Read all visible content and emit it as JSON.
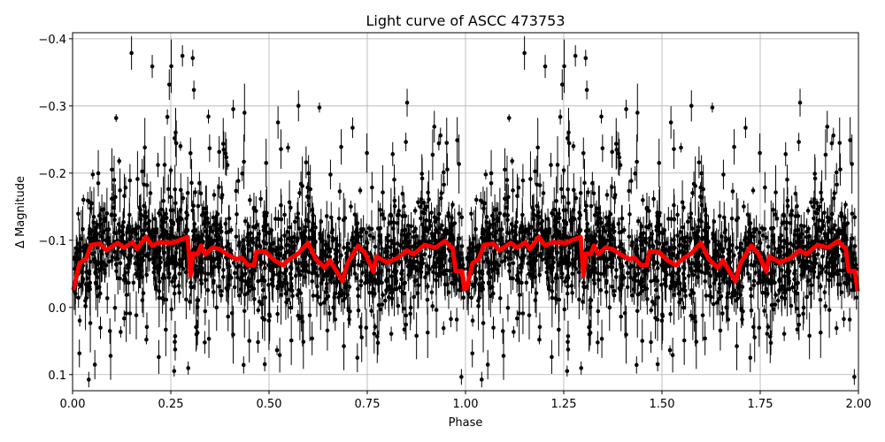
{
  "chart_data": {
    "type": "scatter",
    "title": "Light curve of ASCC 473753",
    "xlabel": "Phase",
    "ylabel": "Δ Magnitude",
    "xlim": [
      0,
      2
    ],
    "ylim": [
      0.124,
      -0.409
    ],
    "y_inverted": true,
    "grid": true,
    "xticks": [
      0,
      0.25,
      0.5,
      0.75,
      1.0,
      1.25,
      1.5,
      1.75,
      2.0
    ],
    "xtick_labels": [
      "0.00",
      "0.25",
      "0.50",
      "0.75",
      "1.00",
      "1.25",
      "1.50",
      "1.75",
      "2.00"
    ],
    "yticks": [
      -0.4,
      -0.3,
      -0.2,
      -0.1,
      0.0,
      0.1
    ],
    "ytick_labels": [
      "−0.4",
      "−0.3",
      "−0.2",
      "−0.1",
      "0.0",
      "0.1"
    ],
    "scatter_color": "#000000",
    "binned_curve": {
      "color": "#ff0000",
      "period_repeat": 1,
      "phase": [
        0.002,
        0.018,
        0.034,
        0.047,
        0.07,
        0.086,
        0.115,
        0.131,
        0.153,
        0.164,
        0.187,
        0.203,
        0.221,
        0.255,
        0.293,
        0.3,
        0.306,
        0.318,
        0.327,
        0.338,
        0.356,
        0.374,
        0.394,
        0.417,
        0.43,
        0.446,
        0.462,
        0.468,
        0.491,
        0.514,
        0.536,
        0.552,
        0.574,
        0.599,
        0.619,
        0.642,
        0.655,
        0.687,
        0.7,
        0.727,
        0.745,
        0.766,
        0.773,
        0.8,
        0.829,
        0.851,
        0.867,
        0.896,
        0.923,
        0.948,
        0.968,
        0.975,
        0.991,
        0.998
      ],
      "delta_mag": [
        -0.026,
        -0.066,
        -0.072,
        -0.093,
        -0.095,
        -0.085,
        -0.096,
        -0.089,
        -0.097,
        -0.087,
        -0.105,
        -0.092,
        -0.097,
        -0.096,
        -0.105,
        -0.047,
        -0.08,
        -0.079,
        -0.092,
        -0.079,
        -0.089,
        -0.087,
        -0.079,
        -0.072,
        -0.074,
        -0.063,
        -0.063,
        -0.083,
        -0.083,
        -0.07,
        -0.063,
        -0.072,
        -0.08,
        -0.096,
        -0.072,
        -0.059,
        -0.07,
        -0.039,
        -0.066,
        -0.092,
        -0.08,
        -0.053,
        -0.076,
        -0.067,
        -0.074,
        -0.085,
        -0.079,
        -0.093,
        -0.089,
        -0.099,
        -0.087,
        -0.054,
        -0.054,
        -0.024
      ]
    }
  }
}
